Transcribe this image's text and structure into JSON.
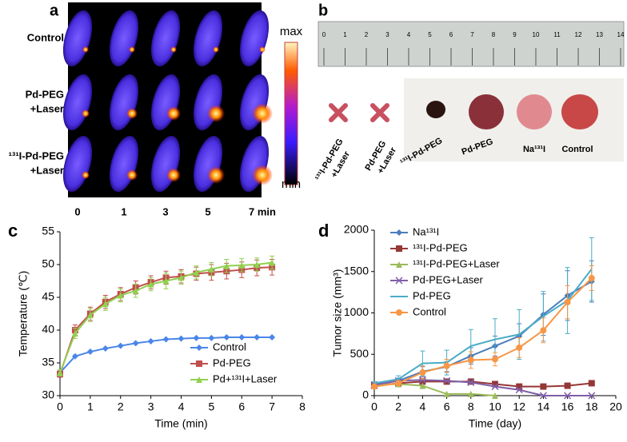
{
  "panels": {
    "a": {
      "label": "a",
      "rows": [
        [
          "Control"
        ],
        [
          "Pd-PEG",
          "+Laser"
        ],
        [
          "¹³¹I-Pd-PEG",
          "+Laser"
        ]
      ],
      "times": [
        "0",
        "1",
        "3",
        "5",
        "7 min"
      ],
      "colorbar": {
        "max": "max",
        "min": "min"
      }
    },
    "b": {
      "label": "b",
      "ruler": [
        0,
        1,
        2,
        3,
        4,
        5,
        6,
        7,
        8,
        9,
        10,
        11,
        12,
        13,
        14
      ],
      "samples": [
        [
          "¹³¹I-Pd-PEG",
          "+Laser"
        ],
        [
          "Pd-PEG",
          "+Laser"
        ],
        [
          "¹³¹I-Pd-PEG"
        ],
        [
          "Pd-PEG"
        ],
        [
          "Na¹³¹I"
        ],
        [
          "Control"
        ]
      ]
    }
  },
  "chart_data": [
    {
      "type": "line",
      "panel_label": "c",
      "x_label": "Time (min)",
      "y_label": "Temperature (℃)",
      "x": [
        0,
        0.5,
        1,
        1.5,
        2,
        2.5,
        3,
        3.5,
        4,
        4.5,
        5,
        5.5,
        6,
        6.5,
        7
      ],
      "xlim": [
        0,
        8
      ],
      "xticks": [
        0,
        1,
        2,
        3,
        4,
        5,
        6,
        7,
        8
      ],
      "ylim": [
        30,
        55
      ],
      "yticks": [
        30,
        35,
        40,
        45,
        50,
        55
      ],
      "legend": "lower-right",
      "series": [
        {
          "name": "Control",
          "color": "#4a86e8",
          "marker": "diamond",
          "values": [
            33.5,
            36,
            36.7,
            37.2,
            37.6,
            38,
            38.3,
            38.6,
            38.7,
            38.8,
            38.8,
            38.9,
            38.9,
            38.9,
            38.9
          ]
        },
        {
          "name": "Pd-PEG",
          "color": "#c0504d",
          "marker": "square",
          "values": [
            33.3,
            40,
            42.5,
            44.3,
            45.5,
            46.5,
            47.3,
            48,
            48.2,
            48.6,
            48.8,
            49,
            49.2,
            49.5,
            49.6
          ],
          "errors": [
            0.5,
            0.8,
            1,
            1,
            1,
            1,
            1,
            1,
            1,
            1,
            1.2,
            1.2,
            1.2,
            1.2,
            1.2
          ]
        },
        {
          "name": "Pd+¹³¹I+Laser",
          "color": "#92d050",
          "marker": "triangle",
          "values": [
            33.5,
            39.5,
            42.3,
            44,
            45.3,
            46,
            47,
            47.5,
            48,
            48.8,
            49.3,
            49.8,
            49.9,
            50,
            50.3
          ],
          "errors": [
            0.5,
            0.8,
            1,
            1,
            1,
            1,
            1,
            1.2,
            1,
            1,
            1,
            1,
            1,
            1,
            1
          ]
        }
      ]
    },
    {
      "type": "line",
      "panel_label": "d",
      "x_label": "Time (day)",
      "y_label": "Tumor size (mm³)",
      "x": [
        0,
        2,
        4,
        6,
        8,
        10,
        12,
        14,
        16,
        18
      ],
      "xlim": [
        0,
        20
      ],
      "xticks": [
        0,
        2,
        4,
        6,
        8,
        10,
        12,
        14,
        16,
        18,
        20
      ],
      "ylim": [
        0,
        2000
      ],
      "yticks": [
        0,
        500,
        1000,
        1500,
        2000
      ],
      "legend": "upper-left",
      "series": [
        {
          "name": "Na¹³¹I",
          "color": "#4a7ebb",
          "marker": "diamond",
          "values": [
            130,
            180,
            290,
            350,
            480,
            600,
            720,
            980,
            1210,
            1380
          ],
          "errors": [
            10,
            30,
            60,
            60,
            100,
            120,
            150,
            250,
            300,
            250
          ]
        },
        {
          "name": "¹³¹I-Pd-PEG",
          "color": "#953735",
          "marker": "square",
          "values": [
            120,
            150,
            170,
            170,
            170,
            140,
            110,
            110,
            120,
            150
          ]
        },
        {
          "name": "¹³¹I-Pd-PEG+Laser",
          "color": "#9bbb59",
          "marker": "triangle",
          "values": [
            130,
            140,
            120,
            20,
            20,
            0,
            null,
            null,
            null,
            null
          ]
        },
        {
          "name": "Pd-PEG+Laser",
          "color": "#7f5fa8",
          "marker": "x",
          "values": [
            130,
            180,
            190,
            180,
            160,
            110,
            70,
            0,
            0,
            0
          ]
        },
        {
          "name": "Pd-PEG",
          "color": "#4bacc6",
          "marker": "none",
          "values": [
            150,
            200,
            390,
            400,
            600,
            680,
            740,
            960,
            1150,
            1530
          ],
          "errors": [
            20,
            40,
            150,
            150,
            200,
            250,
            300,
            300,
            400,
            380
          ]
        },
        {
          "name": "Control",
          "color": "#f79646",
          "marker": "circle",
          "values": [
            110,
            150,
            280,
            360,
            430,
            440,
            580,
            790,
            1130,
            1420
          ],
          "errors": [
            20,
            30,
            80,
            80,
            100,
            80,
            120,
            150,
            200,
            150
          ]
        }
      ]
    }
  ]
}
